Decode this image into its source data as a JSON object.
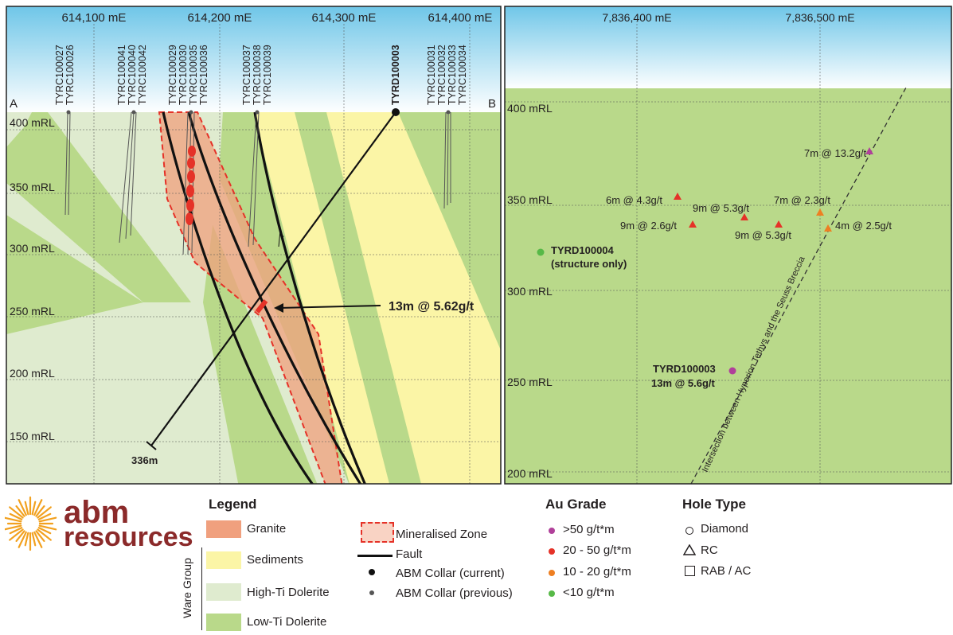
{
  "left_section": {
    "easting_labels": [
      "614,100 mE",
      "614,200 mE",
      "614,300 mE",
      "614,400 mE"
    ],
    "rl_labels": [
      "400 mRL",
      "350 mRL",
      "300 mRL",
      "250 mRL",
      "200 mRL",
      "150 mRL"
    ],
    "section_start": "A",
    "section_end": "B",
    "hole_groups": [
      [
        "TYRC100027",
        "TYRC100026"
      ],
      [
        "TYRC100041",
        "TYRC100040",
        "TYRC100042"
      ],
      [
        "TYRC100029",
        "TYRC100030",
        "TYRC100035",
        "TYRC100036"
      ],
      [
        "TYRC100037",
        "TYRC100038",
        "TYRC100039"
      ],
      [
        "TYRD100003"
      ],
      [
        "TYRC100031",
        "TYRC100032",
        "TYRC100033",
        "TYRC100034"
      ]
    ],
    "intercept_label": "13m @ 5.62g/t",
    "depth_label": "336m"
  },
  "right_section": {
    "northing_labels": [
      "7,836,400 mE",
      "7,836,500 mE"
    ],
    "rl_labels": [
      "400 mRL",
      "350 mRL",
      "300 mRL",
      "250 mRL",
      "200 mRL"
    ],
    "intercepts": [
      "7m @ 13.2g/t",
      "6m @ 4.3g/t",
      "9m @ 5.3g/t",
      "7m @ 2.3g/t",
      "9m @ 2.6g/t",
      "9m @ 5.3g/t",
      "4m @ 2.5g/t"
    ],
    "hole_label_1": "TYRD100004",
    "hole_label_1_note": "(structure only)",
    "hole_label_2": "TYRD100003",
    "hole_label_2_note": "13m @ 5.6g/t",
    "breccia_label": "Intersection between Hyperion Tethys and the Seuss Breccia"
  },
  "logo": {
    "line1": "abm",
    "line2": "resources"
  },
  "legend": {
    "title": "Legend",
    "granite": "Granite",
    "sediments": "Sediments",
    "high_ti": "High-Ti Dolerite",
    "low_ti": "Low-Ti Dolerite",
    "group_label": "Ware Group",
    "mineralised": "Mineralised Zone",
    "fault": "Fault",
    "collar_current": "ABM Collar (current)",
    "collar_previous": "ABM Collar (previous)"
  },
  "au_grade": {
    "title": "Au Grade",
    "items": [
      ">50 g/t*m",
      "20 - 50 g/t*m",
      "10 - 20 g/t*m",
      "<10 g/t*m"
    ]
  },
  "hole_type": {
    "title": "Hole Type",
    "items": [
      "Diamond",
      "RC",
      "RAB / AC"
    ]
  },
  "colors": {
    "sky": "#6fc6e8",
    "low_ti": "#b9d98a",
    "high_ti": "#dfebcf",
    "sediments": "#fbf5a6",
    "granite": "#f0a07e",
    "grade_gt50": "#b0409a",
    "grade_20_50": "#e53228",
    "grade_10_20": "#ee7f22",
    "grade_lt10": "#57b947"
  }
}
